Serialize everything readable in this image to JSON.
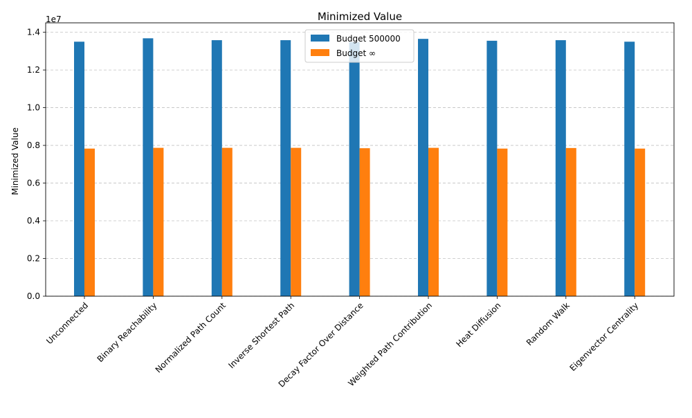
{
  "chart_data": {
    "type": "bar",
    "title": "Minimized Value",
    "xlabel": "",
    "ylabel": "Minimized Value",
    "y_offset_label": "1e7",
    "ylim": [
      0,
      14500000
    ],
    "yticks": [
      0,
      2000000,
      4000000,
      6000000,
      8000000,
      10000000,
      12000000,
      14000000
    ],
    "ytick_labels": [
      "0.0",
      "0.2",
      "0.4",
      "0.6",
      "0.8",
      "1.0",
      "1.2",
      "1.4"
    ],
    "grid": "y-dashed",
    "legend_position": "top-center",
    "categories": [
      "Unconnected",
      "Binary Reachability",
      "Normalized Path Count",
      "Inverse Shortest Path",
      "Decay Factor Over Distance",
      "Weighted Path Contribution",
      "Heat Diffusion",
      "Random Walk",
      "Eigenvector Centrality"
    ],
    "series": [
      {
        "name": "Budget 500000",
        "color": "#1f77b4",
        "values": [
          13500000,
          13680000,
          13580000,
          13580000,
          13480000,
          13650000,
          13550000,
          13580000,
          13500000
        ]
      },
      {
        "name": "Budget ∞",
        "color": "#ff7f0e",
        "values": [
          7830000,
          7870000,
          7870000,
          7870000,
          7850000,
          7870000,
          7830000,
          7860000,
          7830000
        ]
      }
    ]
  }
}
